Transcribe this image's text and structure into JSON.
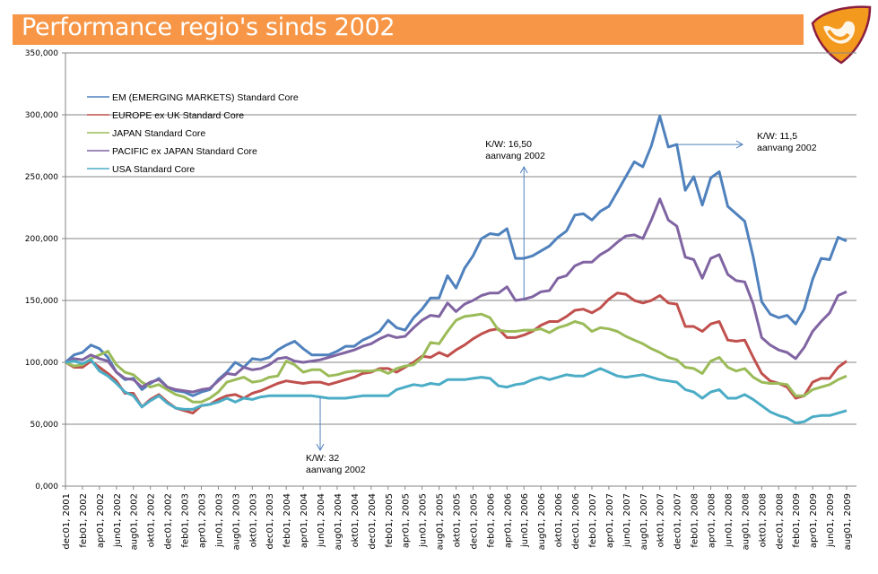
{
  "header": {
    "title": "Performance regio's sinds 2002",
    "bar_color": "#F79646",
    "logo": "orange-shield-logo-icon"
  },
  "chart_data": {
    "type": "line",
    "title": "Performance regio's sinds 2002",
    "xlabel": "",
    "ylabel": "",
    "ylim": [
      0,
      350000
    ],
    "yticks": [
      0,
      50000,
      100000,
      150000,
      200000,
      250000,
      300000,
      350000
    ],
    "ytick_labels": [
      "0,000",
      "50,000",
      "100,000",
      "150,000",
      "200,000",
      "250,000",
      "300,000",
      "350,000"
    ],
    "grid": true,
    "legend_position": "top-left",
    "xtick_labels": [
      "dec01, 2001",
      "feb01, 2002",
      "apr01, 2002",
      "jun01, 2002",
      "aug01, 2002",
      "okt01, 2002",
      "dec01, 2002",
      "feb01, 2003",
      "apr01, 2003",
      "jun01, 2003",
      "aug01, 2003",
      "okt01, 2003",
      "dec01, 2003",
      "feb01, 2004",
      "apr01, 2004",
      "jun01, 2004",
      "aug01, 2004",
      "okt01, 2004",
      "dec01, 2004",
      "feb01, 2005",
      "apr01, 2005",
      "jun01, 2005",
      "aug01, 2005",
      "okt01, 2005",
      "dec01, 2005",
      "feb01, 2006",
      "apr01, 2006",
      "jun01, 2006",
      "aug01, 2006",
      "okt01, 2006",
      "dec01, 2006",
      "feb01, 2007",
      "apr01, 2007",
      "jun01, 2007",
      "aug01, 2007",
      "okt01, 2007",
      "dec01, 2007",
      "feb01, 2008",
      "apr01, 2008",
      "jun01, 2008",
      "aug01, 2008",
      "okt01, 2008",
      "dec01, 2008",
      "feb01, 2009",
      "apr01, 2009",
      "jun01, 2009",
      "aug01, 2009"
    ],
    "x_start": "dec 2001",
    "x_step": "1 month",
    "series": [
      {
        "name": "EM (EMERGING MARKETS) Standard Core",
        "color": "#4F81BD",
        "values": [
          100000,
          106000,
          108000,
          114000,
          111000,
          104000,
          92000,
          86000,
          87000,
          78000,
          83000,
          87000,
          80000,
          77000,
          76000,
          73000,
          76000,
          78000,
          86000,
          92000,
          100000,
          96000,
          103000,
          102000,
          104000,
          110000,
          114000,
          117000,
          111000,
          106000,
          106000,
          106000,
          109000,
          113000,
          113000,
          118000,
          121000,
          125000,
          134000,
          128000,
          126000,
          136000,
          143000,
          152000,
          152000,
          170000,
          160000,
          176000,
          186000,
          200000,
          204000,
          203000,
          208000,
          184000,
          184000,
          186000,
          190000,
          194000,
          201000,
          206000,
          219000,
          220000,
          215000,
          222000,
          226000,
          238000,
          250000,
          262000,
          258000,
          275000,
          299000,
          274000,
          276000,
          239000,
          250000,
          227000,
          249000,
          254000,
          226000,
          220000,
          214000,
          185000,
          149000,
          139000,
          136000,
          138000,
          131000,
          143000,
          167000,
          184000,
          183000,
          201000,
          198000
        ]
      },
      {
        "name": "EUROPE ex UK Standard Core",
        "color": "#C0504D",
        "values": [
          100000,
          96000,
          96000,
          101000,
          96000,
          91000,
          85000,
          75000,
          75000,
          64000,
          70000,
          74000,
          68000,
          63000,
          61000,
          59000,
          65000,
          66000,
          70000,
          73000,
          74000,
          71000,
          75000,
          77000,
          80000,
          83000,
          85000,
          84000,
          83000,
          84000,
          84000,
          82000,
          84000,
          86000,
          88000,
          91000,
          92000,
          95000,
          95000,
          92000,
          96000,
          100000,
          105000,
          104000,
          108000,
          105000,
          110000,
          114000,
          119000,
          123000,
          126000,
          127000,
          120000,
          120000,
          122000,
          125000,
          130000,
          133000,
          133000,
          137000,
          142000,
          143000,
          140000,
          144000,
          151000,
          156000,
          155000,
          150000,
          148000,
          150000,
          154000,
          148000,
          147000,
          129000,
          129000,
          125000,
          131000,
          133000,
          118000,
          117000,
          118000,
          104000,
          91000,
          85000,
          83000,
          80000,
          71000,
          73000,
          84000,
          87000,
          87000,
          96000,
          101000
        ]
      },
      {
        "name": "JAPAN Standard Core",
        "color": "#9BBB59",
        "values": [
          100000,
          97000,
          98000,
          103000,
          106000,
          109000,
          98000,
          92000,
          90000,
          84000,
          80000,
          82000,
          78000,
          74000,
          72000,
          68000,
          68000,
          71000,
          76000,
          84000,
          86000,
          88000,
          84000,
          85000,
          88000,
          89000,
          101000,
          98000,
          92000,
          94000,
          94000,
          89000,
          90000,
          92000,
          93000,
          93000,
          93000,
          94000,
          91000,
          95000,
          97000,
          98000,
          104000,
          116000,
          115000,
          125000,
          134000,
          137000,
          138000,
          139000,
          136000,
          126000,
          125000,
          125000,
          126000,
          126000,
          127000,
          124000,
          128000,
          130000,
          133000,
          131000,
          125000,
          128000,
          127000,
          125000,
          121000,
          118000,
          115000,
          111000,
          108000,
          104000,
          102000,
          96000,
          95000,
          91000,
          101000,
          104000,
          96000,
          93000,
          95000,
          88000,
          84000,
          83000,
          83000,
          82000,
          73000,
          73000,
          78000,
          80000,
          82000,
          86000,
          89000
        ]
      },
      {
        "name": "PACIFIC ex JAPAN Standard Core",
        "color": "#8064A2",
        "values": [
          100000,
          103000,
          102000,
          106000,
          103000,
          101000,
          92000,
          87000,
          86000,
          80000,
          84000,
          86000,
          80000,
          78000,
          77000,
          76000,
          78000,
          79000,
          85000,
          91000,
          90000,
          96000,
          94000,
          95000,
          98000,
          103000,
          104000,
          101000,
          100000,
          101000,
          102000,
          104000,
          106000,
          108000,
          110000,
          113000,
          115000,
          119000,
          122000,
          120000,
          121000,
          128000,
          134000,
          138000,
          137000,
          148000,
          141000,
          147000,
          150000,
          154000,
          156000,
          156000,
          161000,
          150000,
          151000,
          153000,
          157000,
          158000,
          168000,
          170000,
          178000,
          181000,
          181000,
          187000,
          191000,
          197000,
          202000,
          203000,
          200000,
          215000,
          232000,
          215000,
          210000,
          185000,
          183000,
          168000,
          184000,
          187000,
          171000,
          166000,
          165000,
          147000,
          120000,
          114000,
          110000,
          108000,
          103000,
          112000,
          125000,
          133000,
          140000,
          154000,
          157000
        ]
      },
      {
        "name": "USA Standard Core",
        "color": "#4BACC6",
        "values": [
          100000,
          101000,
          99000,
          102000,
          93000,
          89000,
          83000,
          76000,
          73000,
          64000,
          69000,
          73000,
          67000,
          63000,
          62000,
          62000,
          65000,
          66000,
          68000,
          71000,
          68000,
          71000,
          70000,
          72000,
          73000,
          73000,
          73000,
          73000,
          73000,
          73000,
          72000,
          71000,
          71000,
          71000,
          72000,
          73000,
          73000,
          73000,
          73000,
          78000,
          80000,
          82000,
          81000,
          83000,
          82000,
          86000,
          86000,
          86000,
          87000,
          88000,
          87000,
          81000,
          80000,
          82000,
          83000,
          86000,
          88000,
          86000,
          88000,
          90000,
          89000,
          89000,
          92000,
          95000,
          92000,
          89000,
          88000,
          89000,
          90000,
          88000,
          86000,
          85000,
          84000,
          78000,
          76000,
          71000,
          76000,
          78000,
          71000,
          71000,
          74000,
          70000,
          65000,
          60000,
          57000,
          55000,
          51000,
          52000,
          56000,
          57000,
          57000,
          59000,
          61000
        ]
      }
    ],
    "annotations": [
      {
        "line1": "K/W: 32",
        "line2": "aanvang 2002",
        "arrow": "down",
        "anchor_series": "USA Standard Core",
        "anchor_month": "jun 2004"
      },
      {
        "line1": "K/W: 16,50",
        "line2": "aanvang 2002",
        "arrow": "up",
        "anchor_series": "PACIFIC ex JAPAN Standard Core",
        "anchor_month": "jun 2006"
      },
      {
        "line1": "K/W: 11,5",
        "line2": "aanvang 2002",
        "arrow": "right",
        "anchor_series": "EM (EMERGING MARKETS) Standard Core",
        "anchor_month": "dec 2007"
      }
    ]
  }
}
